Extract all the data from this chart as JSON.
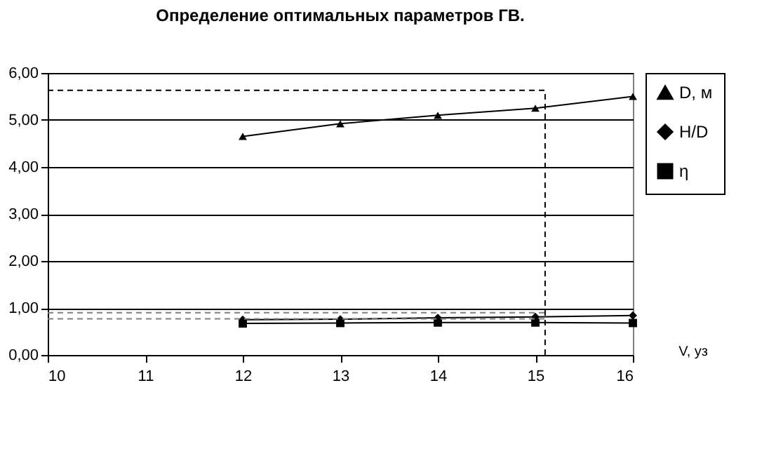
{
  "chart_data": {
    "type": "line",
    "title": "Определение оптимальных параметров ГВ.",
    "xlabel": "V, уз",
    "x": [
      12,
      13,
      14,
      15,
      16
    ],
    "series": [
      {
        "name": "D, м",
        "color": "#000000",
        "marker": "triangle",
        "values": [
          4.65,
          4.92,
          5.1,
          5.25,
          5.5
        ]
      },
      {
        "name": "H/D",
        "color": "#000000",
        "marker": "diamond",
        "values": [
          0.75,
          0.76,
          0.79,
          0.81,
          0.84
        ]
      },
      {
        "name": "η",
        "color": "#000000",
        "marker": "square",
        "values": [
          0.67,
          0.68,
          0.69,
          0.69,
          0.68
        ]
      }
    ],
    "ref_lines": [
      {
        "axis": "y",
        "value": 5.63,
        "color": "#000000",
        "line_style": "dashed"
      },
      {
        "axis": "x",
        "value": 15.1,
        "color": "#000000",
        "line_style": "dashed"
      },
      {
        "axis": "y",
        "value": 0.9,
        "color": "#808080",
        "line_style": "dashed"
      },
      {
        "axis": "y",
        "value": 0.77,
        "color": "#808080",
        "line_style": "dashed"
      }
    ],
    "xlim": [
      10,
      16
    ],
    "xticks": [
      10,
      11,
      12,
      13,
      14,
      15,
      16
    ],
    "ylim": [
      0,
      6
    ],
    "yticks": [
      {
        "value": 0,
        "label": "0,00"
      },
      {
        "value": 1,
        "label": "1,00"
      },
      {
        "value": 2,
        "label": "2,00"
      },
      {
        "value": 3,
        "label": "3,00"
      },
      {
        "value": 4,
        "label": "4,00"
      },
      {
        "value": 5,
        "label": "5,00"
      },
      {
        "value": 6,
        "label": "6,00"
      }
    ],
    "grid": "y",
    "legend": "right"
  }
}
